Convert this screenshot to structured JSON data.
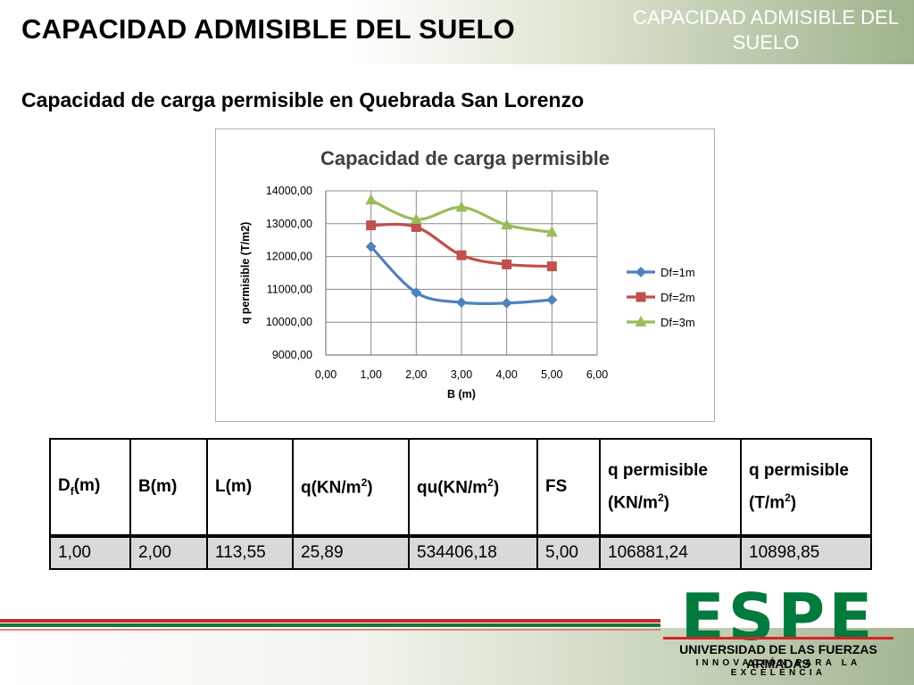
{
  "header": {
    "title": "CAPACIDAD ADMISIBLE DEL SUELO",
    "right_label": "CAPACIDAD ADMISIBLE DEL SUELO"
  },
  "subtitle": "Capacidad de carga permisible en Quebrada San Lorenzo",
  "chart_data": {
    "type": "line",
    "title": "Capacidad de carga permisible",
    "xlabel": "B (m)",
    "ylabel": "q permisible (T/m2)",
    "xlim": [
      0,
      6
    ],
    "ylim": [
      9000,
      14000
    ],
    "x_ticks": [
      "0,00",
      "1,00",
      "2,00",
      "3,00",
      "4,00",
      "5,00",
      "6,00"
    ],
    "y_ticks": [
      "9000,00",
      "10000,00",
      "11000,00",
      "12000,00",
      "13000,00",
      "14000,00"
    ],
    "grid": "horizontal and vertical",
    "legend_position": "right",
    "x": [
      1,
      2,
      3,
      4,
      5
    ],
    "series": [
      {
        "name": "Df=1m",
        "color": "#4f81bd",
        "marker": "diamond",
        "values": [
          12300,
          10900,
          10600,
          10580,
          10680
        ]
      },
      {
        "name": "Df=2m",
        "color": "#c0504d",
        "marker": "square",
        "values": [
          12950,
          12900,
          12040,
          11760,
          11700
        ]
      },
      {
        "name": "Df=3m",
        "color": "#9bbb59",
        "marker": "triangle",
        "values": [
          13720,
          13130,
          13500,
          12960,
          12740
        ]
      }
    ]
  },
  "table": {
    "headers": {
      "df_main": "D",
      "df_sub": "f",
      "df_rest": "(m)",
      "b": "B(m)",
      "l": "L(m)",
      "q_main": "q(KN/m",
      "q_sup": "2",
      "q_end": ")",
      "qu_main": "qu(KN/m",
      "qu_sup": "2",
      "qu_end": ")",
      "fs": "FS",
      "qp_kn_main": "q  permisible (KN/m",
      "qp_kn_sup": "2",
      "qp_kn_end": ")",
      "qp_t_main": "q permisible (T/m",
      "qp_t_sup": "2",
      "qp_t_end": ")"
    },
    "row": {
      "df": "1,00",
      "b": "2,00",
      "l": "113,55",
      "q": "25,89",
      "qu": "534406,18",
      "fs": "5,00",
      "qp_kn": "106881,24",
      "qp_t": "10898,85"
    }
  },
  "logo": {
    "word": "ESPE",
    "university": "UNIVERSIDAD DE LAS FUERZAS ARMADAS",
    "motto": "INNOVACIÓN PARA LA EXCELENCIA",
    "green": "#007a3d",
    "red": "#d8232a"
  }
}
